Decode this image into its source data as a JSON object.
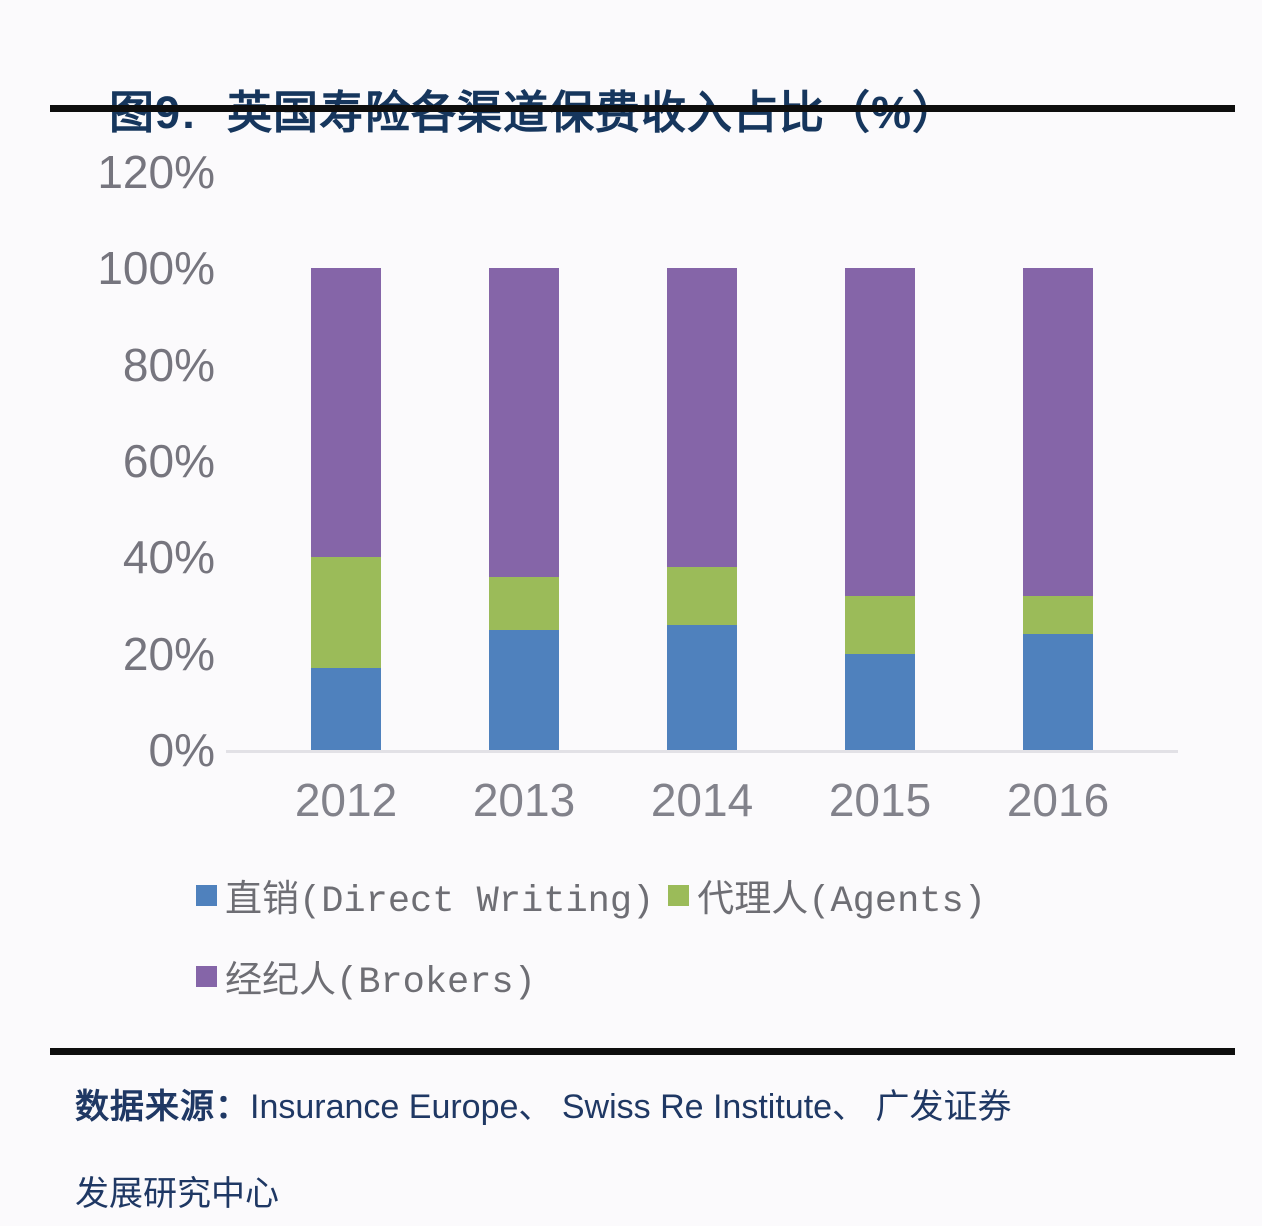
{
  "title": {
    "label": "图9:",
    "text": "英国寿险各渠道保费收入占比（%）"
  },
  "chart_data": {
    "type": "bar",
    "stacked": true,
    "title": "英国寿险各渠道保费收入占比（%）",
    "categories": [
      "2012",
      "2013",
      "2014",
      "2015",
      "2016"
    ],
    "series": [
      {
        "name": "直销(Direct Writing)",
        "color": "#4F81BD",
        "values": [
          17,
          25,
          26,
          20,
          24
        ]
      },
      {
        "name": "代理人(Agents)",
        "color": "#9BBB59",
        "values": [
          23,
          11,
          12,
          12,
          8
        ]
      },
      {
        "name": "经纪人(Brokers)",
        "color": "#8565A8",
        "values": [
          60,
          64,
          62,
          68,
          68
        ]
      }
    ],
    "xlabel": "",
    "ylabel": "",
    "ylim": [
      0,
      120
    ],
    "yticks": [
      0,
      20,
      40,
      60,
      80,
      100,
      120
    ],
    "ytick_suffix": "%",
    "grid": false,
    "legend_position": "bottom-left"
  },
  "source": {
    "label": "数据来源：",
    "line1_rest": "Insurance Europe、 Swiss Re Institute、 广发证券",
    "line2": "发展研究中心"
  },
  "colors": {
    "title_text": "#16365D",
    "source_text": "#1F3864",
    "axis_tick_text": "#76757E",
    "category_text": "#82828B",
    "legend_text": "#6E6E74",
    "rule": "#0e0e0e",
    "background": "#FBFAFC"
  }
}
